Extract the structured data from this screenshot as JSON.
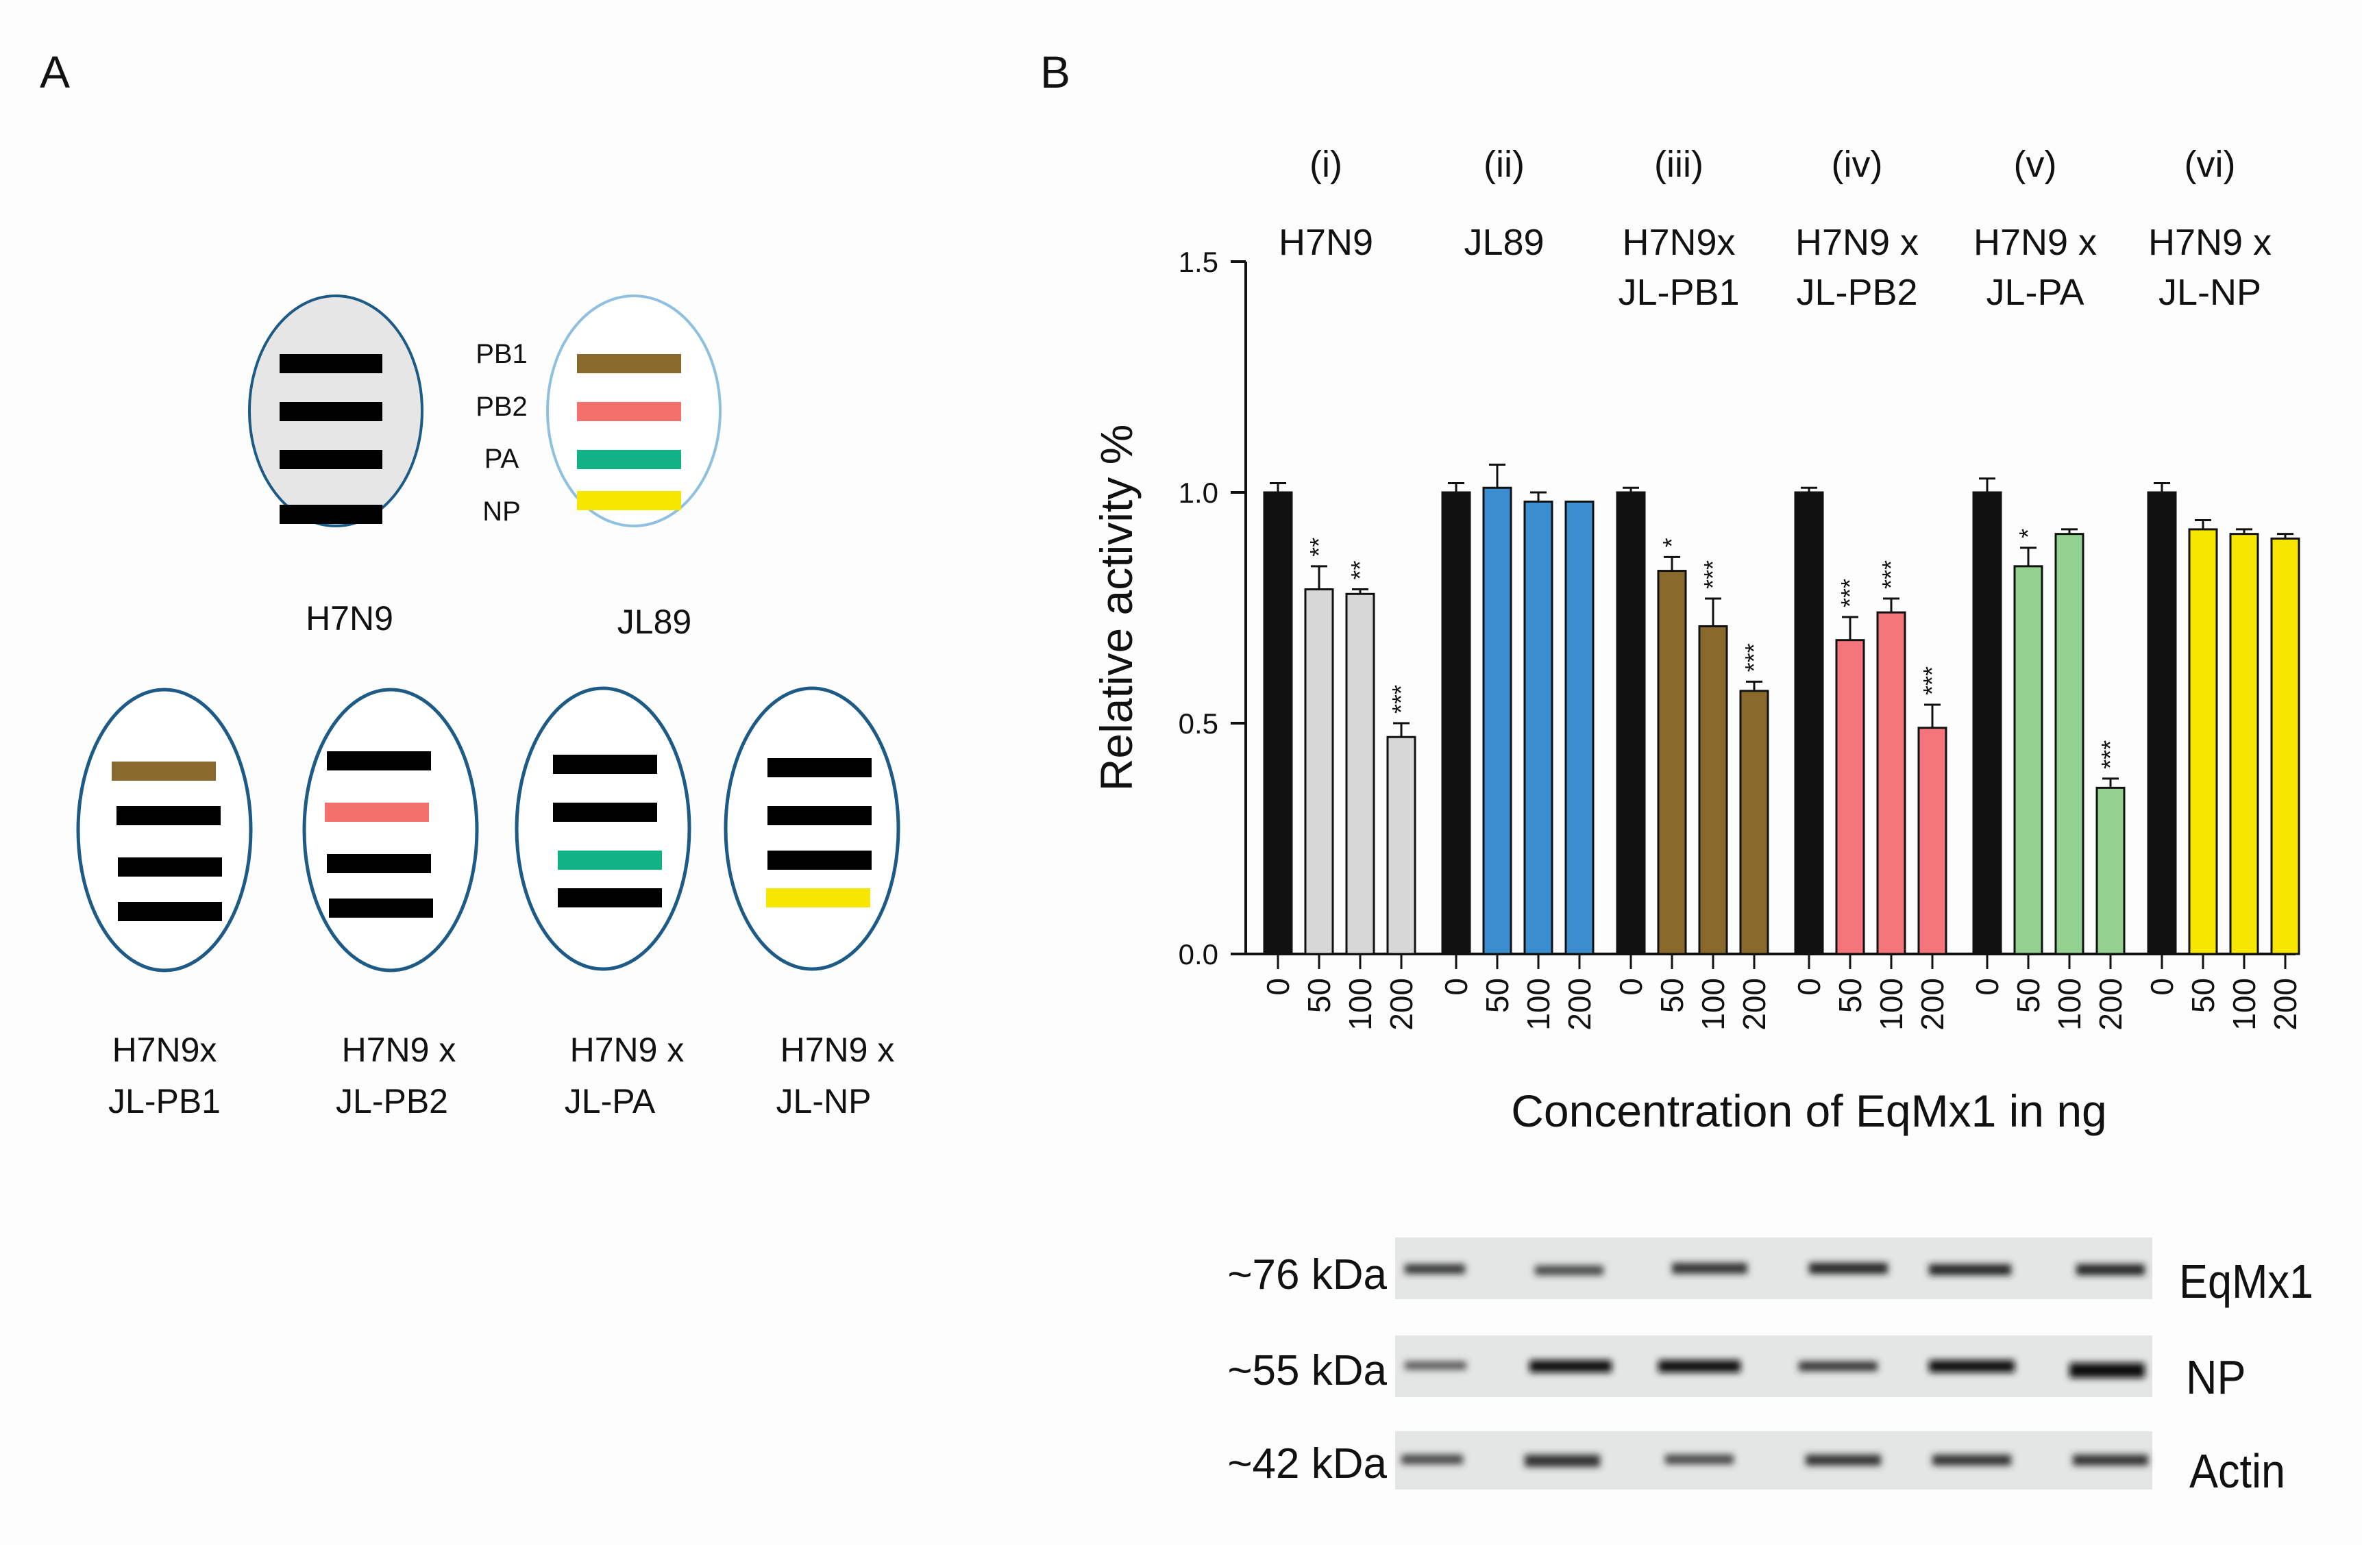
{
  "panel_a": {
    "label": "A",
    "segment_labels": [
      "PB1",
      "PB2",
      "PA",
      "NP"
    ],
    "parents": [
      {
        "name": "H7N9",
        "fill": "#e6e6e6",
        "stroke": "#1d5b86",
        "segments": [
          "#000000",
          "#000000",
          "#000000",
          "#000000"
        ]
      },
      {
        "name": "JL89",
        "fill": "#ffffff",
        "stroke": "#8fc0e0",
        "segments": [
          "#8a6a2c",
          "#f4706d",
          "#12b287",
          "#f6e600"
        ]
      }
    ],
    "reassortants": [
      {
        "name_line1": "H7N9x",
        "name_line2": "JL-PB1",
        "segments": [
          "#8a6a2c",
          "#000000",
          "#000000",
          "#000000"
        ]
      },
      {
        "name_line1": "H7N9 x",
        "name_line2": "JL-PB2",
        "segments": [
          "#000000",
          "#f4706d",
          "#000000",
          "#000000"
        ]
      },
      {
        "name_line1": "H7N9 x",
        "name_line2": "JL-PA",
        "segments": [
          "#000000",
          "#000000",
          "#12b287",
          "#000000"
        ]
      },
      {
        "name_line1": "H7N9 x",
        "name_line2": "JL-NP",
        "segments": [
          "#000000",
          "#000000",
          "#000000",
          "#f6e600"
        ]
      }
    ],
    "reassortant_stroke": "#1d5b86"
  },
  "panel_b": {
    "label": "B",
    "chart_data": {
      "type": "bar",
      "ylabel": "Relative activity %",
      "xlabel": "Concentration of EqMx1 in ng",
      "ylim": [
        0.0,
        1.5
      ],
      "yticks": [
        "0.0",
        "0.5",
        "1.0",
        "1.5"
      ],
      "concentrations": [
        "0",
        "50",
        "100",
        "200"
      ],
      "groups": [
        {
          "roman": "(i)",
          "title_line1": "H7N9",
          "title_line2": "",
          "color": "#d7d7d7",
          "values": [
            1.0,
            0.79,
            0.78,
            0.47
          ],
          "errors": [
            0.02,
            0.05,
            0.01,
            0.03
          ],
          "significance": [
            "",
            "**",
            "**",
            "***"
          ]
        },
        {
          "roman": "(ii)",
          "title_line1": "JL89",
          "title_line2": "",
          "color": "#3b8fd0",
          "values": [
            1.0,
            1.01,
            0.98,
            0.98
          ],
          "errors": [
            0.02,
            0.05,
            0.02,
            0.0
          ],
          "significance": [
            "",
            "",
            "",
            ""
          ]
        },
        {
          "roman": "(iii)",
          "title_line1": "H7N9x",
          "title_line2": "JL-PB1",
          "color": "#8a6a2c",
          "values": [
            1.0,
            0.83,
            0.71,
            0.57
          ],
          "errors": [
            0.01,
            0.03,
            0.06,
            0.02
          ],
          "significance": [
            "",
            "*",
            "***",
            "***"
          ]
        },
        {
          "roman": "(iv)",
          "title_line1": "H7N9 x",
          "title_line2": "JL-PB2",
          "color": "#f4767a",
          "values": [
            1.0,
            0.68,
            0.74,
            0.49
          ],
          "errors": [
            0.01,
            0.05,
            0.03,
            0.05
          ],
          "significance": [
            "",
            "***",
            "***",
            "***"
          ]
        },
        {
          "roman": "(v)",
          "title_line1": "H7N9 x",
          "title_line2": "JL-PA",
          "color": "#92d18f",
          "values": [
            1.0,
            0.84,
            0.91,
            0.36
          ],
          "errors": [
            0.03,
            0.04,
            0.01,
            0.02
          ],
          "significance": [
            "",
            "*",
            "",
            "***"
          ]
        },
        {
          "roman": "(vi)",
          "title_line1": "H7N9 x",
          "title_line2": "JL-NP",
          "color": "#f6e600",
          "values": [
            1.0,
            0.92,
            0.91,
            0.9
          ],
          "errors": [
            0.02,
            0.02,
            0.01,
            0.01
          ],
          "significance": [
            "",
            "",
            "",
            ""
          ]
        }
      ],
      "control_color": "#111111"
    },
    "western_blot": {
      "rows": [
        {
          "kda": "~76 kDa",
          "protein": "EqMx1"
        },
        {
          "kda": "~55 kDa",
          "protein": "NP"
        },
        {
          "kda": "~42 kDa",
          "protein": "Actin"
        }
      ]
    }
  }
}
